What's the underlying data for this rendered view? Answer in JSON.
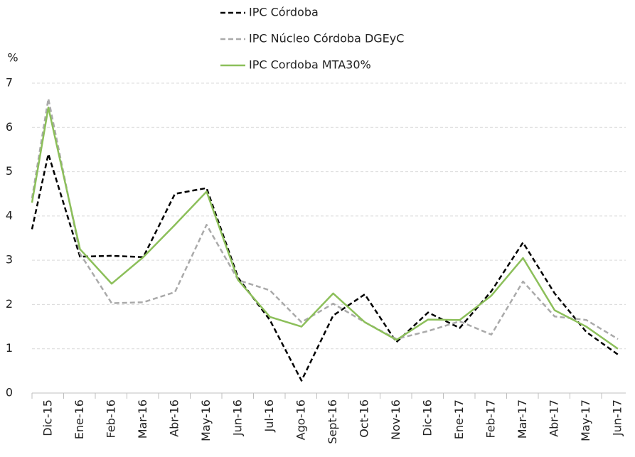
{
  "chart_data": {
    "type": "line",
    "ylabel": "%",
    "categories": [
      null,
      "Dic-15",
      "Ene-16",
      "Feb-16",
      "Mar-16",
      "Abr-16",
      "May-16",
      "Jun-16",
      "Jul-16",
      "Ago-16",
      "Sept-16",
      "Oct-16",
      "Nov-16",
      "Dic-16",
      "Ene-17",
      "Feb-17",
      "Mar-17",
      "Abr-17",
      "May-17",
      "Jun-17"
    ],
    "series": [
      {
        "name": "IPC Córdoba",
        "color": "#000000",
        "dash": true,
        "values": [
          3.7,
          5.4,
          3.08,
          3.1,
          3.07,
          4.5,
          4.63,
          2.6,
          1.65,
          0.28,
          1.75,
          2.23,
          1.15,
          1.82,
          1.47,
          2.3,
          3.4,
          2.25,
          1.38,
          0.87
        ]
      },
      {
        "name": "IPC Núcleo Córdoba DGEyC",
        "color": "#aaaaaa",
        "dash": true,
        "values": [
          4.4,
          6.65,
          3.15,
          2.03,
          2.05,
          2.28,
          3.8,
          2.55,
          2.32,
          1.6,
          2.02,
          1.6,
          1.22,
          1.4,
          1.62,
          1.32,
          2.52,
          1.73,
          1.65,
          1.22
        ]
      },
      {
        "name": "IPC Cordoba MTA30%",
        "color": "#8cbf5a",
        "dash": false,
        "values": [
          4.3,
          6.45,
          3.25,
          2.47,
          3.07,
          3.8,
          4.55,
          2.55,
          1.72,
          1.5,
          2.25,
          1.6,
          1.2,
          1.66,
          1.65,
          2.2,
          3.05,
          1.87,
          1.5,
          1.0
        ]
      }
    ],
    "ylim": [
      0,
      7
    ],
    "yticks": [
      0,
      1,
      2,
      3,
      4,
      5,
      6,
      7
    ],
    "grid": true,
    "legend": "top"
  }
}
